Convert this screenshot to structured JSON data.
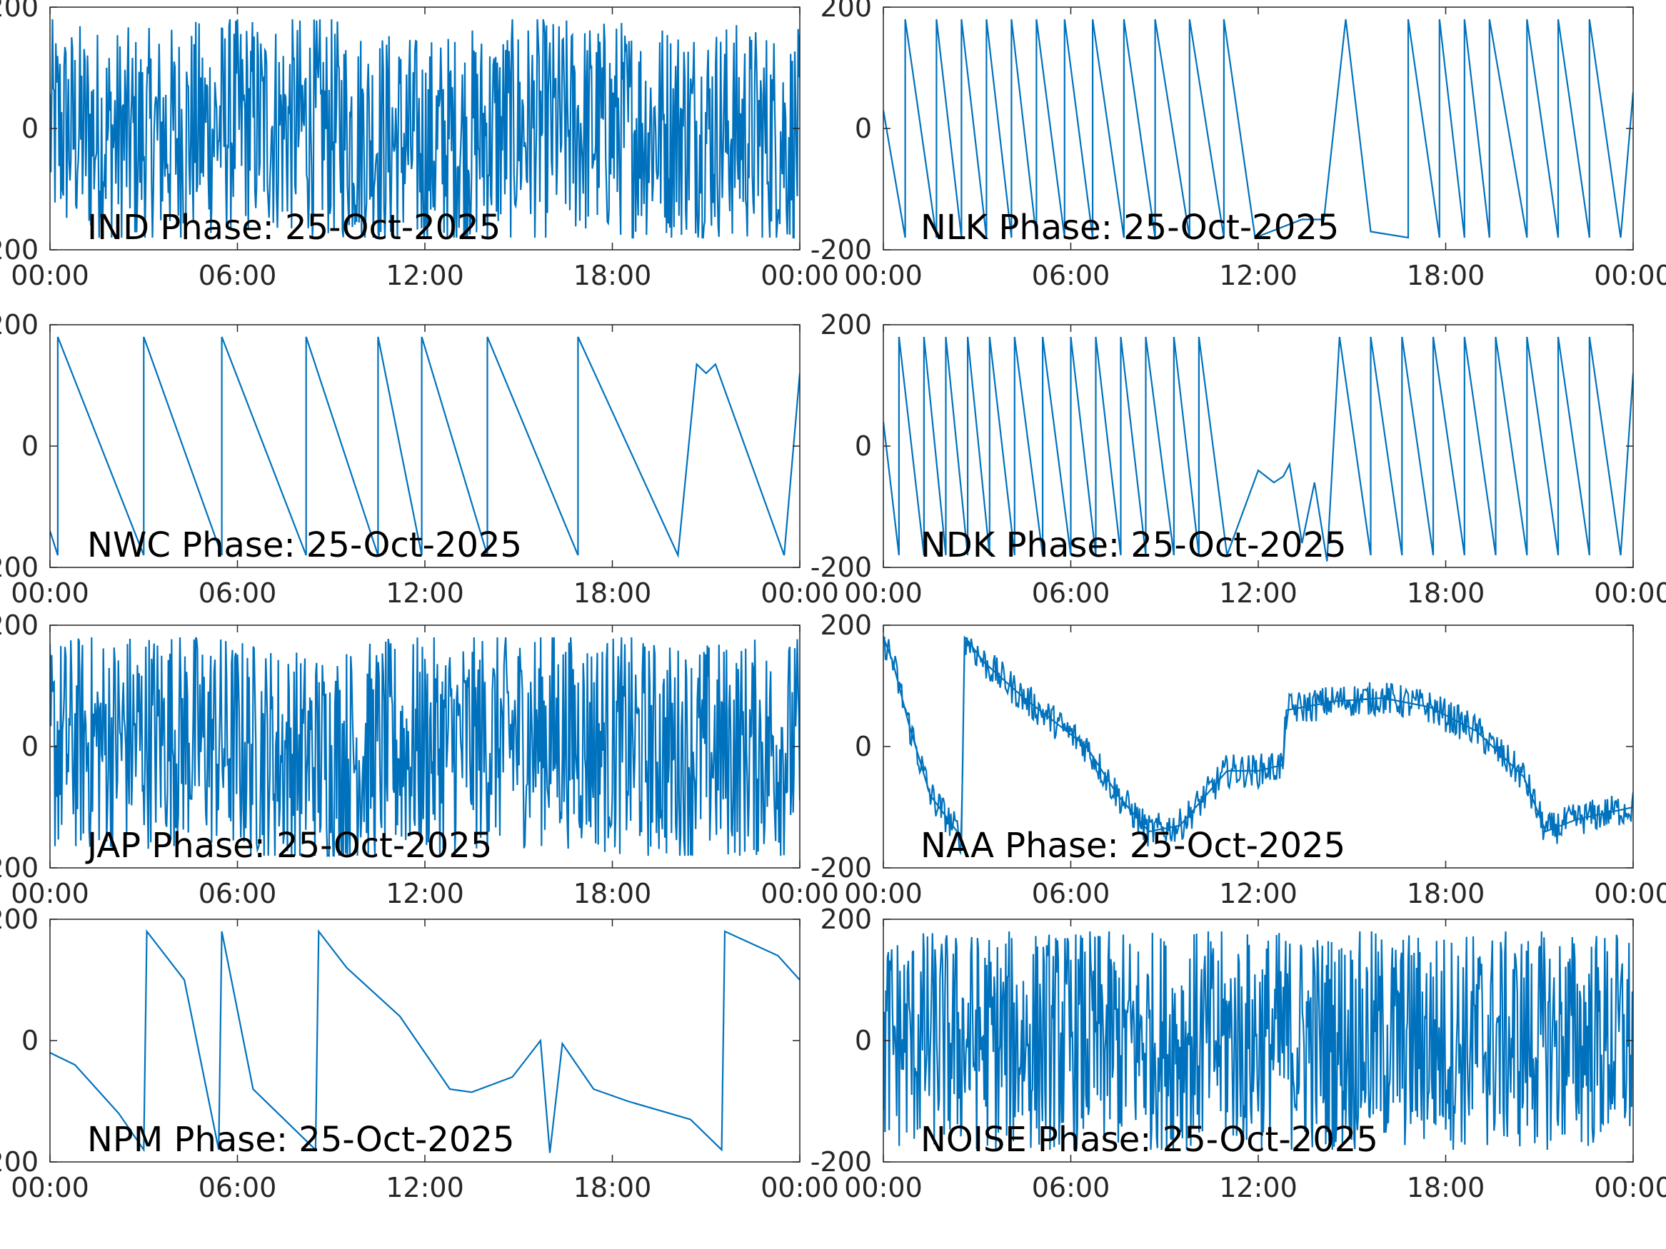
{
  "figure": {
    "line_color": "#0072BD",
    "axis_color": "#262626"
  },
  "chart_data": [
    {
      "type": "line",
      "title": "IND Phase: 25-Oct-2025",
      "xlabel": "",
      "ylabel": "",
      "xlim": [
        "00:00",
        "24:00"
      ],
      "ylim": [
        -200,
        200
      ],
      "x_tick_labels": [
        "00:00",
        "06:00",
        "12:00",
        "18:00",
        "00:00"
      ],
      "y_tick_labels": [
        "-200",
        "0",
        "200"
      ],
      "grid": false,
      "series": [
        {
          "pattern": "wrapped-noise",
          "x_hours": [
            0,
            3,
            6,
            9,
            12,
            15,
            16.3,
            18.2,
            21,
            24
          ],
          "y_deg": [
            0,
            -20,
            10,
            0,
            -30,
            0,
            0,
            0,
            0,
            -20
          ]
        }
      ]
    },
    {
      "type": "line",
      "title": "NLK Phase: 25-Oct-2025",
      "xlabel": "",
      "ylabel": "",
      "xlim": [
        "00:00",
        "24:00"
      ],
      "ylim": [
        -200,
        200
      ],
      "x_tick_labels": [
        "00:00",
        "06:00",
        "12:00",
        "18:00",
        "00:00"
      ],
      "y_tick_labels": [
        "-200",
        "0",
        "200"
      ],
      "grid": false,
      "series": [
        {
          "pattern": "wrapped-sawtooth",
          "x_hours": [
            0,
            0.7,
            1.7,
            2.5,
            3.3,
            4.1,
            4.9,
            5.8,
            6.7,
            7.7,
            8.7,
            9.8,
            10.9,
            11.9,
            13.4,
            14.1,
            14.8,
            15.6,
            16.8,
            17.8,
            18.6,
            19.4,
            20.6,
            21.6,
            22.6,
            23.6,
            24
          ],
          "y_deg": [
            30,
            -180,
            -180,
            -180,
            -180,
            -180,
            -180,
            -180,
            -180,
            -180,
            -180,
            -180,
            -180,
            -180,
            -150,
            -150,
            180,
            -170,
            -180,
            -180,
            -180,
            -180,
            -180,
            -180,
            -180,
            -180,
            60
          ]
        }
      ]
    },
    {
      "type": "line",
      "title": "NWC Phase: 25-Oct-2025",
      "xlabel": "",
      "ylabel": "",
      "xlim": [
        "00:00",
        "24:00"
      ],
      "ylim": [
        -200,
        200
      ],
      "x_tick_labels": [
        "00:00",
        "06:00",
        "12:00",
        "18:00",
        "00:00"
      ],
      "y_tick_labels": [
        "-200",
        "0",
        "200"
      ],
      "grid": false,
      "series": [
        {
          "pattern": "wrapped-sawtooth",
          "x_hours": [
            0,
            0.25,
            3.0,
            5.5,
            8.2,
            10.5,
            11.9,
            14.0,
            16.9,
            20.1,
            20.7,
            21.0,
            21.3,
            23.5,
            24
          ],
          "y_deg": [
            -140,
            -180,
            -180,
            -180,
            -180,
            -180,
            -180,
            -180,
            -180,
            -180,
            135,
            120,
            135,
            -180,
            120
          ]
        }
      ]
    },
    {
      "type": "line",
      "title": "NDK Phase: 25-Oct-2025",
      "xlabel": "",
      "ylabel": "",
      "xlim": [
        "00:00",
        "24:00"
      ],
      "ylim": [
        -200,
        200
      ],
      "x_tick_labels": [
        "00:00",
        "06:00",
        "12:00",
        "18:00",
        "00:00"
      ],
      "y_tick_labels": [
        "-200",
        "0",
        "200"
      ],
      "grid": false,
      "series": [
        {
          "pattern": "wrapped-sawtooth",
          "x_hours": [
            0,
            0.5,
            1.3,
            2.0,
            2.7,
            3.4,
            4.2,
            5.1,
            6.0,
            6.8,
            7.6,
            8.4,
            9.3,
            10.1,
            11.0,
            12.0,
            12.5,
            12.8,
            13.0,
            13.4,
            13.8,
            14.2,
            14.6,
            15.6,
            16.6,
            17.6,
            18.6,
            19.6,
            20.6,
            21.6,
            22.6,
            23.6,
            24
          ],
          "y_deg": [
            40,
            -180,
            -180,
            -180,
            -180,
            -180,
            -180,
            -180,
            -180,
            -180,
            -180,
            -180,
            -180,
            -180,
            -180,
            -40,
            -60,
            -50,
            -30,
            -160,
            -60,
            -190,
            180,
            -180,
            -180,
            -180,
            -180,
            -180,
            -180,
            -180,
            -180,
            -180,
            120
          ]
        }
      ]
    },
    {
      "type": "line",
      "title": "JAP Phase: 25-Oct-2025",
      "xlabel": "",
      "ylabel": "",
      "xlim": [
        "00:00",
        "24:00"
      ],
      "ylim": [
        -200,
        200
      ],
      "x_tick_labels": [
        "00:00",
        "06:00",
        "12:00",
        "18:00",
        "00:00"
      ],
      "y_tick_labels": [
        "-200",
        "0",
        "200"
      ],
      "grid": false,
      "series": [
        {
          "pattern": "wrapped-noise",
          "x_hours": [
            0,
            4,
            8,
            12,
            16,
            20,
            24
          ],
          "y_deg": [
            0,
            20,
            -20,
            0,
            20,
            -10,
            0
          ]
        }
      ]
    },
    {
      "type": "line",
      "title": "NAA Phase: 25-Oct-2025",
      "xlabel": "",
      "ylabel": "",
      "xlim": [
        "00:00",
        "24:00"
      ],
      "ylim": [
        -200,
        200
      ],
      "x_tick_labels": [
        "00:00",
        "06:00",
        "12:00",
        "18:00",
        "00:00"
      ],
      "y_tick_labels": [
        "-200",
        "0",
        "200"
      ],
      "grid": false,
      "series": [
        {
          "pattern": "noisy-curve",
          "x_hours": [
            0,
            0.3,
            0.8,
            1.5,
            2.5,
            2.6,
            2.7,
            3.2,
            4.5,
            6.5,
            7.5,
            8.5,
            9.5,
            11.0,
            12.0,
            12.8,
            12.9,
            14.5,
            16.0,
            17.5,
            19.0,
            20.5,
            21.2,
            22.2,
            24
          ],
          "y_deg": [
            180,
            140,
            40,
            -80,
            -150,
            180,
            175,
            140,
            80,
            0,
            -80,
            -140,
            -130,
            -40,
            -40,
            -30,
            60,
            75,
            80,
            65,
            25,
            -50,
            -140,
            -120,
            -100
          ]
        }
      ]
    },
    {
      "type": "line",
      "title": "NPM Phase: 25-Oct-2025",
      "xlabel": "",
      "ylabel": "",
      "xlim": [
        "00:00",
        "24:00"
      ],
      "ylim": [
        -200,
        200
      ],
      "x_tick_labels": [
        "00:00",
        "06:00",
        "12:00",
        "18:00",
        "00:00"
      ],
      "y_tick_labels": [
        "-200",
        "0",
        "200"
      ],
      "grid": false,
      "series": [
        {
          "pattern": "wrapped-sawtooth",
          "x_hours": [
            0,
            0.8,
            2.2,
            3.0,
            3.1,
            4.3,
            5.4,
            5.5,
            6.5,
            8.5,
            8.6,
            9.5,
            11.2,
            12.8,
            13.5,
            14.8,
            15.7,
            16.0,
            16.4,
            17.4,
            18.5,
            20.5,
            21.5,
            21.6,
            23.3,
            24
          ],
          "y_deg": [
            -20,
            -40,
            -120,
            -180,
            180,
            100,
            -180,
            180,
            -80,
            -180,
            180,
            120,
            40,
            -80,
            -85,
            -60,
            0,
            -185,
            -5,
            -80,
            -100,
            -130,
            -180,
            180,
            140,
            100
          ]
        }
      ]
    },
    {
      "type": "line",
      "title": "NOISE Phase: 25-Oct-2025",
      "xlabel": "",
      "ylabel": "",
      "xlim": [
        "00:00",
        "24:00"
      ],
      "ylim": [
        -200,
        200
      ],
      "x_tick_labels": [
        "00:00",
        "06:00",
        "12:00",
        "18:00",
        "00:00"
      ],
      "y_tick_labels": [
        "-200",
        "0",
        "200"
      ],
      "grid": false,
      "series": [
        {
          "pattern": "wrapped-noise",
          "x_hours": [
            0,
            6,
            12,
            18,
            24
          ],
          "y_deg": [
            0,
            0,
            0,
            0,
            0
          ]
        }
      ]
    }
  ]
}
